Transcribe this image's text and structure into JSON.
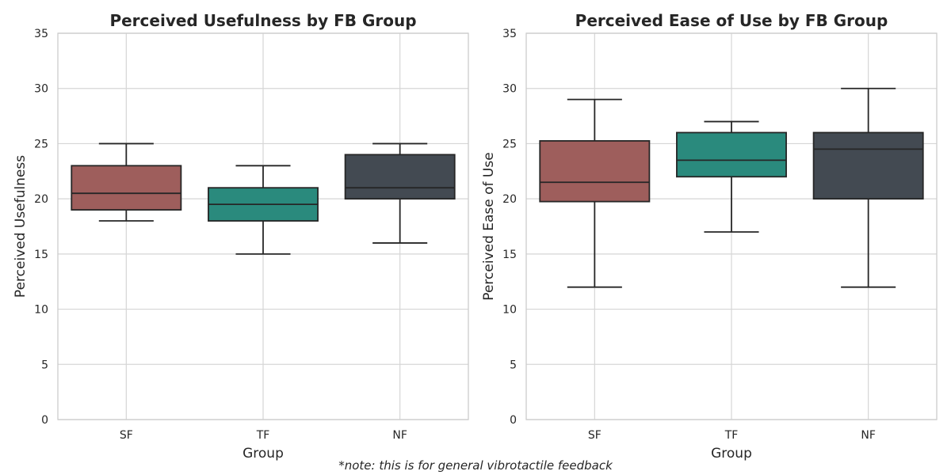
{
  "footnote": "*note: this is for general vibrotactile feedback",
  "chart_data": [
    {
      "type": "box",
      "title": "Perceived Usefulness by FB Group",
      "xlabel": "Group",
      "ylabel": "Perceived Usefulness",
      "categories": [
        "SF",
        "TF",
        "NF"
      ],
      "ylim": [
        0,
        35
      ],
      "yticks": [
        0,
        5,
        10,
        15,
        20,
        25,
        30,
        35
      ],
      "grid": true,
      "boxes": [
        {
          "category": "SF",
          "whisker_low": 18,
          "q1": 19,
          "median": 20.5,
          "q3": 23,
          "whisker_high": 25,
          "color": "#9e5e5c"
        },
        {
          "category": "TF",
          "whisker_low": 15,
          "q1": 18,
          "median": 19.5,
          "q3": 21,
          "whisker_high": 23,
          "color": "#2a8a7d"
        },
        {
          "category": "NF",
          "whisker_low": 16,
          "q1": 20,
          "median": 21,
          "q3": 24,
          "whisker_high": 25,
          "color": "#434a52"
        }
      ]
    },
    {
      "type": "box",
      "title": "Perceived Ease of Use by FB Group",
      "xlabel": "Group",
      "ylabel": "Perceived Ease of Use",
      "categories": [
        "SF",
        "TF",
        "NF"
      ],
      "ylim": [
        0,
        35
      ],
      "yticks": [
        0,
        5,
        10,
        15,
        20,
        25,
        30,
        35
      ],
      "grid": true,
      "boxes": [
        {
          "category": "SF",
          "whisker_low": 12,
          "q1": 19.75,
          "median": 21.5,
          "q3": 25.25,
          "whisker_high": 29,
          "color": "#9e5e5c"
        },
        {
          "category": "TF",
          "whisker_low": 17,
          "q1": 22,
          "median": 23.5,
          "q3": 26,
          "whisker_high": 27,
          "color": "#2a8a7d"
        },
        {
          "category": "NF",
          "whisker_low": 12,
          "q1": 20,
          "median": 24.5,
          "q3": 26,
          "whisker_high": 30,
          "color": "#434a52"
        }
      ]
    }
  ]
}
